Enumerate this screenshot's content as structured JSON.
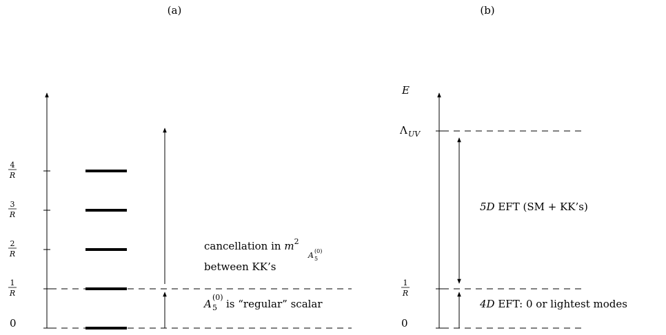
{
  "panel_a": {
    "label": "(a)",
    "ticks": [
      {
        "value": "0",
        "numerator": "",
        "denominator": ""
      },
      {
        "value": "",
        "numerator": "1",
        "denominator": "R"
      },
      {
        "value": "",
        "numerator": "2",
        "denominator": "R"
      },
      {
        "value": "",
        "numerator": "3",
        "denominator": "R"
      },
      {
        "value": "",
        "numerator": "4",
        "denominator": "R"
      }
    ],
    "upper_annotation": {
      "line1_text": "cancellation in ",
      "line1_math": "m",
      "line1_sup": "2",
      "line1_sub": "A",
      "line1_subsub": "5",
      "line1_subsup": "(0)",
      "line2": "between KK’s"
    },
    "lower_annotation": {
      "symbol": "A",
      "sub": "5",
      "sup": "(0)",
      "text": " is “regular” scalar"
    }
  },
  "panel_b": {
    "label": "(b)",
    "axis_label": "E",
    "ticks": [
      {
        "value": "0",
        "numerator": "",
        "denominator": ""
      },
      {
        "value": "",
        "numerator": "1",
        "denominator": "R"
      },
      {
        "value": "Λ",
        "sub": "UV"
      }
    ],
    "upper_region": {
      "math": "5D",
      "text": " EFT (SM + KK’s)"
    },
    "lower_region": {
      "math": "4D",
      "text": " EFT: 0 or lightest modes"
    }
  }
}
